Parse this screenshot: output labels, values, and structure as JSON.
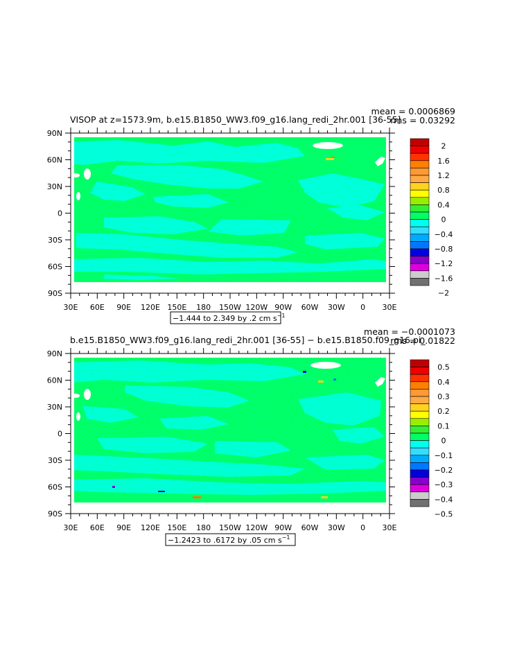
{
  "chart_data": [
    {
      "type": "heatmap",
      "title": "VISOP at z=1573.9m, b.e15.B1850_WW3.f09_g16.lang_redi_2hr.001 [36-55]",
      "stats": {
        "mean": "mean = 0.0006869",
        "rms": "rms = 0.03292"
      },
      "x_ticks": [
        "30E",
        "60E",
        "90E",
        "120E",
        "150E",
        "180",
        "150W",
        "120W",
        "90W",
        "60W",
        "30W",
        "0",
        "30E"
      ],
      "y_ticks": [
        "90N",
        "60N",
        "30N",
        "0",
        "30S",
        "60S",
        "90S"
      ],
      "contour_info": "−1.444 to 2.349 by .2 cm s",
      "contour_info_exp": "−1",
      "colorbar": {
        "labels": [
          "2",
          "1.6",
          "1.2",
          "0.8",
          "0.4",
          "0",
          "−0.4",
          "−0.8",
          "−1.2",
          "−1.6",
          "−2"
        ],
        "colors": [
          "#c00000",
          "#ee0000",
          "#ff3300",
          "#ff7f00",
          "#ff9933",
          "#ffaa44",
          "#ffd21e",
          "#ffff00",
          "#99ee00",
          "#33ee33",
          "#00ff66",
          "#00ffee",
          "#33ddff",
          "#00aaff",
          "#0077ff",
          "#0000dd",
          "#8800cc",
          "#dd00dd",
          "#cccccc",
          "#707070"
        ]
      }
    },
    {
      "type": "heatmap",
      "title": "b.e15.B1850_WW3.f09_g16.lang_redi_2hr.001 [36-55] − b.e15.B1850.f09_g16.pi_",
      "stats": {
        "mean": "mean = −0.0001073",
        "rms": "rms = 0.01822"
      },
      "x_ticks": [
        "30E",
        "60E",
        "90E",
        "120E",
        "150E",
        "180",
        "150W",
        "120W",
        "90W",
        "60W",
        "30W",
        "0",
        "30E"
      ],
      "y_ticks": [
        "90N",
        "60N",
        "30N",
        "0",
        "30S",
        "60S",
        "90S"
      ],
      "contour_info": "−1.2423 to .6172 by .05 cm s",
      "contour_info_exp": "−1",
      "colorbar": {
        "labels": [
          "0.5",
          "0.4",
          "0.3",
          "0.2",
          "0.1",
          "0",
          "−0.1",
          "−0.2",
          "−0.3",
          "−0.4",
          "−0.5"
        ],
        "colors": [
          "#c00000",
          "#ee0000",
          "#ff3300",
          "#ff7f00",
          "#ff9933",
          "#ffaa44",
          "#ffd21e",
          "#ffff00",
          "#99ee00",
          "#33ee33",
          "#00ff66",
          "#00ffee",
          "#33ddff",
          "#00aaff",
          "#0077ff",
          "#0000dd",
          "#8800cc",
          "#dd00dd",
          "#cccccc",
          "#707070"
        ]
      }
    }
  ],
  "field_colors": {
    "green": "#00ff66",
    "cyan": "#00ffee",
    "land": "#ffffff"
  }
}
